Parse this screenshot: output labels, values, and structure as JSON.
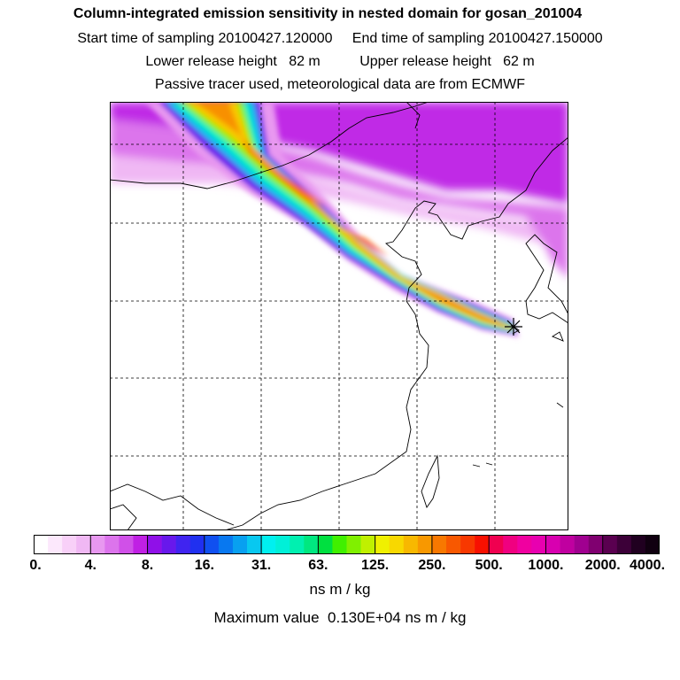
{
  "header": {
    "title": "Column-integrated emission sensitivity in nested domain for gosan_201004",
    "sampling_start": "Start time of sampling 20100427.120000",
    "sampling_end": "End time of sampling 20100427.150000",
    "lower_release": "Lower release height   82 m",
    "upper_release": "Upper release height   62 m",
    "tracer_note": "Passive tracer used, meteorological data are from ECMWF"
  },
  "colorbar": {
    "tick_labels": [
      "0.",
      "4.",
      "8.",
      "16.",
      "31.",
      "63.",
      "125.",
      "250.",
      "500.",
      "1000.",
      "2000.",
      "4000."
    ],
    "segments_per_interval": 4,
    "colors": [
      "#ffffff",
      "#fce8fc",
      "#f8d0f8",
      "#f0b8f4",
      "#e898f0",
      "#dc74ec",
      "#d050e8",
      "#c020e4",
      "#9010e8",
      "#6818ec",
      "#4024f0",
      "#2030f0",
      "#1050f0",
      "#0878f0",
      "#08a0f0",
      "#08c8f0",
      "#00f0f0",
      "#00f0d8",
      "#00f0b0",
      "#00e880",
      "#00e040",
      "#40f000",
      "#80f000",
      "#c0f000",
      "#f0f000",
      "#f8d800",
      "#f8b800",
      "#f89800",
      "#f87800",
      "#f85800",
      "#f83800",
      "#f81000",
      "#f00050",
      "#f00080",
      "#f000a0",
      "#e800b0",
      "#d800b0",
      "#c000a0",
      "#a00090",
      "#800070",
      "#5a0050",
      "#3c0038",
      "#200020",
      "#100010"
    ],
    "units": "ns m / kg",
    "maximum": "Maximum value  0.130E+04 ns m / kg"
  },
  "map": {
    "release_marker": "star-icon"
  }
}
